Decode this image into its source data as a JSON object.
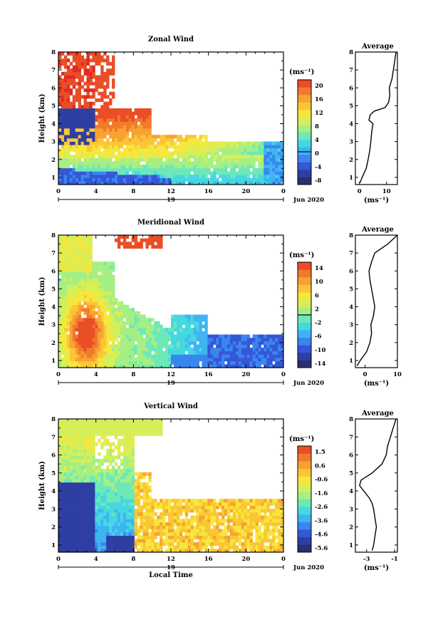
{
  "xlabel": "Local Time",
  "date_label": "Jun 2020",
  "day_label": "19",
  "x_ticks": [
    "0",
    "4",
    "8",
    "12",
    "16",
    "20",
    "0"
  ],
  "y_ticks": [
    "1",
    "2",
    "3",
    "4",
    "5",
    "6",
    "7",
    "8"
  ],
  "ylabel": "Height (km)",
  "unit_label": "(ms⁻¹)",
  "profile_title": "Average",
  "colors": [
    "#2b2f6e",
    "#2e3fa3",
    "#3557d6",
    "#3a86f0",
    "#3fb4f2",
    "#46d8e0",
    "#6de8b8",
    "#a5ef84",
    "#d6ef58",
    "#f6e73c",
    "#fbc635",
    "#f7a232",
    "#f27a2b",
    "#e94e27",
    "#e02a22",
    "#f03a3a"
  ],
  "chart_data": [
    {
      "type": "heatmap",
      "title": "Zonal Wind",
      "ylabel": "Height (km)",
      "xlim": [
        0,
        24
      ],
      "ylim": [
        0.6,
        8
      ],
      "colorbar": {
        "label": "(ms⁻¹)",
        "ticks": [
          "20",
          "16",
          "12",
          "8",
          "4",
          "0",
          "-4",
          "-8"
        ],
        "range": [
          -10,
          22
        ],
        "zero_line": 0
      },
      "profile": {
        "title": "Average",
        "xlabel": "(ms⁻¹)",
        "xticks": [
          "0",
          "10"
        ],
        "xlim": [
          -1.5,
          14
        ],
        "height": [
          0.7,
          1.0,
          1.5,
          2.0,
          2.5,
          3.0,
          3.5,
          4.0,
          4.2,
          4.5,
          4.7,
          4.9,
          5.2,
          5.6,
          6.0,
          6.5,
          7.0,
          7.5,
          8.0
        ],
        "value": [
          0.2,
          1.0,
          2.5,
          3.2,
          3.8,
          4.2,
          4.5,
          5.0,
          3.5,
          4.0,
          5.5,
          9.5,
          10.8,
          11.2,
          11.0,
          12.0,
          12.5,
          13.0,
          13.5
        ]
      }
    },
    {
      "type": "heatmap",
      "title": "Meridional Wind",
      "ylabel": "Height (km)",
      "xlim": [
        0,
        24
      ],
      "ylim": [
        0.6,
        8
      ],
      "colorbar": {
        "label": "(ms⁻¹)",
        "ticks": [
          "14",
          "10",
          "6",
          "2",
          "-2",
          "-6",
          "-10",
          "-14"
        ],
        "range": [
          -16,
          16
        ],
        "zero_line": 0
      },
      "profile": {
        "title": "Average",
        "xlabel": "(ms⁻¹)",
        "xticks": [
          "0",
          "10"
        ],
        "xlim": [
          -3,
          10
        ],
        "height": [
          0.7,
          1.0,
          1.5,
          2.0,
          2.5,
          3.0,
          3.5,
          4.0,
          4.5,
          5.0,
          5.5,
          6.0,
          6.5,
          7.0,
          7.5,
          8.0
        ],
        "value": [
          -2.5,
          -1.5,
          0.5,
          1.5,
          2.0,
          1.8,
          2.6,
          3.0,
          2.5,
          2.0,
          1.5,
          1.2,
          2.0,
          3.0,
          7.0,
          10.0
        ]
      }
    },
    {
      "type": "heatmap",
      "title": "Vertical Wind",
      "ylabel": "Height (km)",
      "xlabel": "Local Time",
      "xlim": [
        0,
        24
      ],
      "ylim": [
        0.6,
        8
      ],
      "colorbar": {
        "label": "(ms⁻¹)",
        "ticks": [
          "1.5",
          "0.6",
          "-0.6",
          "-1.6",
          "-2.6",
          "-3.6",
          "-4.6",
          "-5.6"
        ],
        "range": [
          -6,
          2
        ]
      },
      "profile": {
        "title": "Average",
        "xlabel": "(ms⁻¹)",
        "xticks": [
          "-3",
          "-1"
        ],
        "xlim": [
          -3.8,
          -0.8
        ],
        "height": [
          0.7,
          1.0,
          1.5,
          2.0,
          2.5,
          3.0,
          3.3,
          3.6,
          4.0,
          4.3,
          4.6,
          5.0,
          5.5,
          6.0,
          6.5,
          7.0,
          7.5,
          8.0
        ],
        "value": [
          -2.6,
          -2.5,
          -2.4,
          -2.3,
          -2.4,
          -2.5,
          -2.6,
          -2.8,
          -3.2,
          -3.5,
          -3.4,
          -2.6,
          -1.9,
          -1.6,
          -1.5,
          -1.3,
          -1.1,
          -0.9
        ]
      }
    }
  ]
}
